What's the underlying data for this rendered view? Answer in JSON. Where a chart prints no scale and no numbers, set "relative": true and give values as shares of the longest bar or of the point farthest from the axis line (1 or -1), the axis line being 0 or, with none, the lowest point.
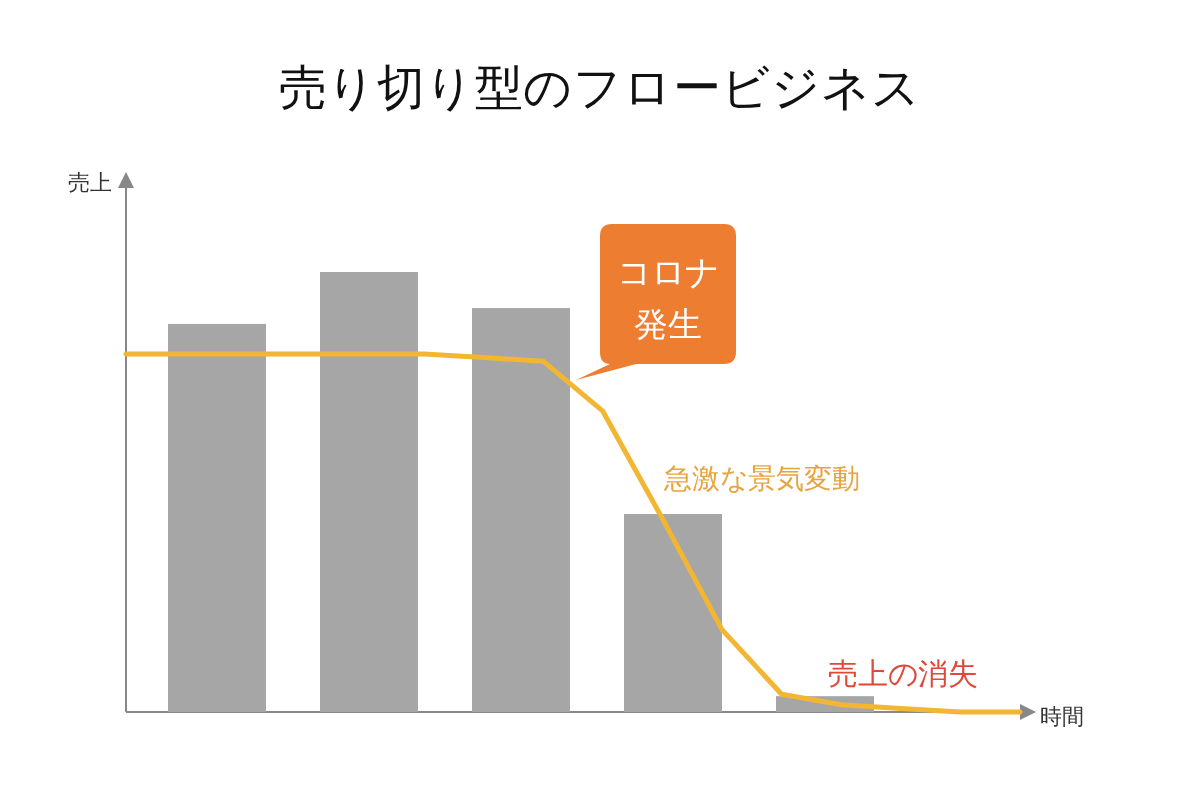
{
  "chart_data": [
    {
      "type": "bar",
      "title": "売り切り型のフロービジネス",
      "xlabel": "時間",
      "ylabel": "売上",
      "relative": true,
      "categories": [
        null,
        null,
        null,
        null,
        null
      ],
      "color": "#a6a6a6",
      "values": [
        0.882,
        1,
        0.918,
        0.45,
        0.036
      ],
      "annotations": [
        "売上の消失"
      ]
    },
    {
      "type": "line",
      "relative": true,
      "categories": [
        null,
        null,
        null,
        null,
        null,
        null,
        null,
        null,
        null,
        null,
        null,
        null,
        null,
        null,
        null,
        null
      ],
      "color": "#f2b632",
      "values": [
        1,
        1,
        1,
        1,
        1,
        1,
        0.99,
        0.98,
        0.84,
        0.54,
        0.23,
        0.05,
        0.02,
        0.01,
        0,
        0
      ],
      "annotations": [
        "コロナ発生",
        "急激な景気変動"
      ]
    }
  ]
}
